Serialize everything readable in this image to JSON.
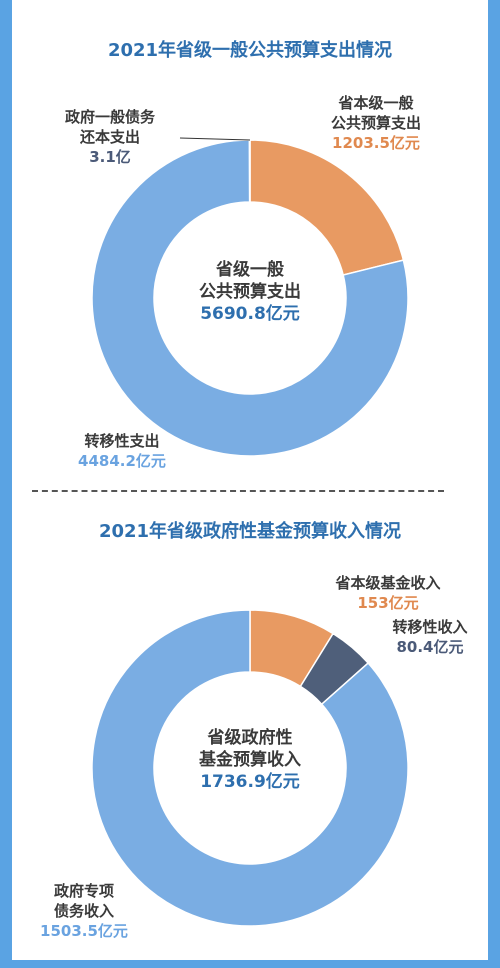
{
  "colors": {
    "primary": "#7aade3",
    "orange": "#e89a62",
    "navy": "#4f5f7a",
    "title": "#2e6fae",
    "label_dark": "#3a3a3a",
    "label_orange": "#e0894f",
    "label_blue": "#6aa3e0",
    "label_navy": "#4b5a78"
  },
  "chart_data": [
    {
      "type": "pie",
      "title": "2021年省级一般公共预算支出情况",
      "center_label": [
        "省级一般",
        "公共预算支出",
        "5690.8亿元"
      ],
      "slices": [
        {
          "name_lines": [
            "省本级一般",
            "公共预算支出"
          ],
          "value": 1203.5,
          "value_text": "1203.5亿元",
          "color": "#e89a62",
          "value_color": "#e0894f"
        },
        {
          "name_lines": [
            "转移性支出"
          ],
          "value": 4484.2,
          "value_text": "4484.2亿元",
          "color": "#7aade3",
          "value_color": "#6aa3e0"
        },
        {
          "name_lines": [
            "政府一般债务",
            "还本支出"
          ],
          "value": 3.1,
          "value_text": "3.1亿",
          "color": "#4f5f7a",
          "value_color": "#4b5a78"
        }
      ]
    },
    {
      "type": "pie",
      "title": "2021年省级政府性基金预算收入情况",
      "center_label": [
        "省级政府性",
        "基金预算收入",
        "1736.9亿元"
      ],
      "slices": [
        {
          "name_lines": [
            "省本级基金收入"
          ],
          "value": 153,
          "value_text": "153亿元",
          "color": "#e89a62",
          "value_color": "#e0894f"
        },
        {
          "name_lines": [
            "转移性收入"
          ],
          "value": 80.4,
          "value_text": "80.4亿元",
          "color": "#4f5f7a",
          "value_color": "#4b5a78"
        },
        {
          "name_lines": [
            "政府专项",
            "债务收入"
          ],
          "value": 1503.5,
          "value_text": "1503.5亿元",
          "color": "#7aade3",
          "value_color": "#6aa3e0"
        }
      ]
    }
  ]
}
